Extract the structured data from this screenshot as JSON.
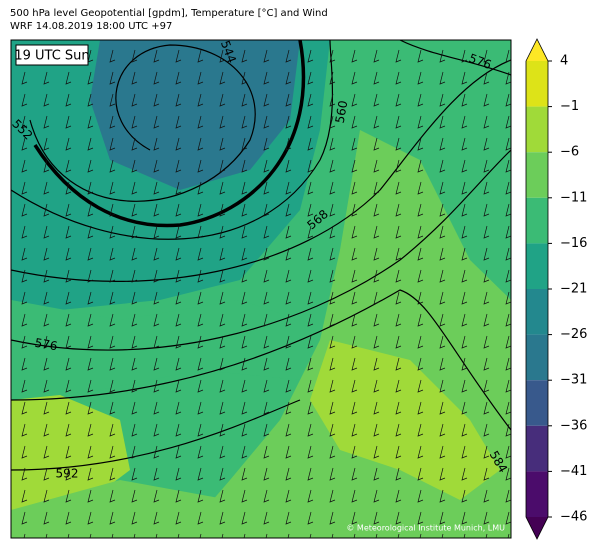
{
  "header": {
    "title_line1": "500 hPa level Geopotential [gpdm], Temperature [°C] and Wind",
    "title_line2": "WRF 14.08.2019 18:00 UTC +97"
  },
  "map": {
    "time_label": "19 UTC Sun",
    "contour_labels": [
      "544",
      "552",
      "560",
      "568",
      "576",
      "576",
      "584",
      "592"
    ],
    "credit": "© Meteorological Institute Munich, LMU"
  },
  "colorbar": {
    "ticks": [
      4,
      {
        "value": -1,
        "label": "−1"
      },
      {
        "value": -6,
        "label": "−6"
      },
      {
        "value": -11,
        "label": "−11"
      },
      {
        "value": -16,
        "label": "−16"
      },
      {
        "value": -21,
        "label": "−21"
      },
      {
        "value": -26,
        "label": "−26"
      },
      {
        "value": -31,
        "label": "−31"
      },
      {
        "value": -36,
        "label": "−36"
      },
      {
        "value": -41,
        "label": "−41"
      },
      {
        "value": -46,
        "label": "−46"
      }
    ],
    "colors": [
      "#dde318",
      "#a0da39",
      "#6ccd5a",
      "#3bbb75",
      "#20a386",
      "#23888e",
      "#2a788e",
      "#38598c",
      "#472d7b",
      "#4b0c6b"
    ],
    "extend_colors": [
      "#fde725",
      "#440154"
    ]
  }
}
